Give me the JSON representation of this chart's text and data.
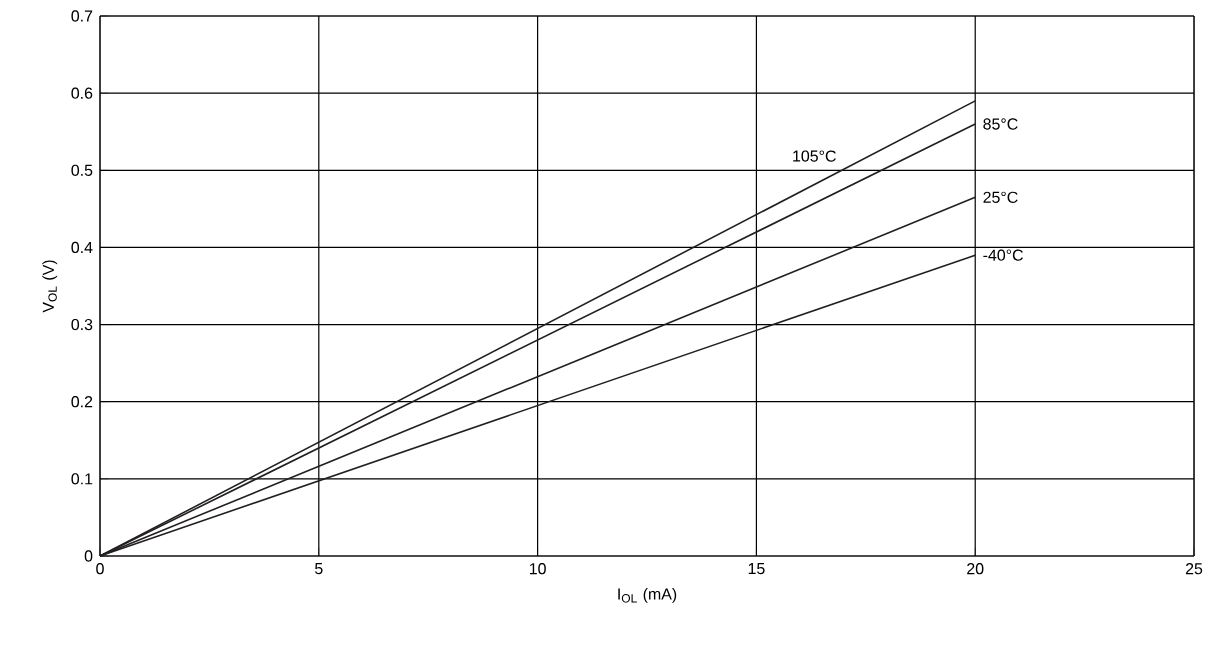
{
  "chart_data": {
    "type": "line",
    "xlabel": "I$_{OL}$ (mA)",
    "ylabel": "V$_{OL}$ (V)",
    "x": [
      0,
      20
    ],
    "series": [
      {
        "name": "105°C",
        "color": "#231f20",
        "values": [
          0,
          0.59
        ]
      },
      {
        "name": "85°C",
        "color": "#231f20",
        "values": [
          0,
          0.56
        ]
      },
      {
        "name": "25°C",
        "color": "#231f20",
        "values": [
          0,
          0.465
        ]
      },
      {
        "name": "-40°C",
        "color": "#231f20",
        "values": [
          0,
          0.39
        ]
      }
    ],
    "xlim": [
      0,
      25
    ],
    "ylim": [
      0,
      0.7
    ],
    "xticks": [
      0,
      5,
      10,
      15,
      20,
      25
    ],
    "yticks": [
      0,
      0.1,
      0.2,
      0.3,
      0.4,
      0.5,
      0.6,
      0.7
    ],
    "grid": true,
    "legend": false,
    "marker": "none",
    "line_style": "solid"
  }
}
